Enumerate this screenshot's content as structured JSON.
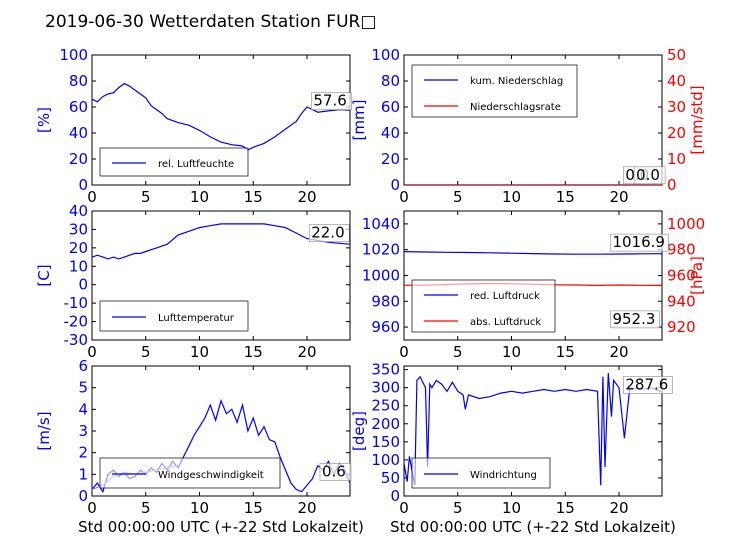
{
  "title": "2019-06-30 Wetterdaten Station FUR□",
  "xlabel": "Std 00:00:00 UTC (+-22 Std Lokalzeit)",
  "colors": {
    "left": "#0000ff",
    "right": "#ff0000",
    "light": "#8080ff"
  },
  "chart_data": [
    {
      "id": "humidity",
      "type": "line",
      "ylabel": "[%]",
      "xlim": [
        0,
        24
      ],
      "xticks": [
        0,
        5,
        10,
        15,
        20
      ],
      "ylim": [
        0,
        100
      ],
      "yticks": [
        0,
        20,
        40,
        60,
        80,
        100
      ],
      "legend": {
        "position": "lower-left",
        "entries": [
          "rel. Luftfeuchte"
        ]
      },
      "series": [
        {
          "name": "rel. Luftfeuchte",
          "color": "#0000ff",
          "x": [
            0,
            0.5,
            1,
            1.5,
            2,
            2.5,
            3,
            3.5,
            4,
            4.5,
            5,
            5.5,
            6,
            6.5,
            7,
            8,
            9,
            10,
            11,
            12,
            13,
            14,
            14.5,
            15,
            16,
            17,
            18,
            19,
            19.5,
            20,
            21,
            22,
            23,
            24
          ],
          "y": [
            66,
            64,
            68,
            70,
            71,
            75,
            78,
            76,
            73,
            70,
            67,
            61,
            58,
            55,
            51,
            48,
            46,
            42,
            37,
            33,
            31,
            30,
            27,
            29,
            32,
            37,
            43,
            49,
            55,
            60,
            56,
            57,
            58,
            57.6
          ]
        }
      ],
      "value_labels": [
        "57.6"
      ]
    },
    {
      "id": "precip",
      "type": "line",
      "ylabel": "[mm]",
      "y2label": "[mm/std]",
      "xlim": [
        0,
        24
      ],
      "xticks": [
        0,
        5,
        10,
        15,
        20
      ],
      "ylim": [
        0,
        100
      ],
      "yticks": [
        0,
        20,
        40,
        60,
        80,
        100
      ],
      "y2lim": [
        0,
        50
      ],
      "y2ticks": [
        0,
        10,
        20,
        30,
        40,
        50
      ],
      "legend": {
        "position": "upper-left",
        "entries": [
          "kum. Niederschlag",
          "Niederschlagsrate"
        ]
      },
      "series": [
        {
          "name": "kum. Niederschlag",
          "color": "#0000ff",
          "axis": "left",
          "x": [
            0,
            24
          ],
          "y": [
            0,
            0
          ]
        },
        {
          "name": "Niederschlagsrate",
          "color": "#ff0000",
          "axis": "right",
          "x": [
            0,
            24
          ],
          "y": [
            0,
            0
          ]
        }
      ],
      "value_labels": [
        "0.0",
        "0.0"
      ]
    },
    {
      "id": "temperature",
      "type": "line",
      "ylabel": "[C]",
      "xlim": [
        0,
        24
      ],
      "xticks": [
        0,
        5,
        10,
        15,
        20
      ],
      "ylim": [
        -30,
        40
      ],
      "yticks": [
        -30,
        -20,
        -10,
        0,
        10,
        20,
        30,
        40
      ],
      "legend": {
        "position": "lower-left",
        "entries": [
          "Lufttemperatur"
        ]
      },
      "series": [
        {
          "name": "Lufttemperatur",
          "color": "#0000ff",
          "x": [
            0,
            0.5,
            1,
            1.5,
            2,
            2.5,
            3,
            3.5,
            4,
            4.5,
            5,
            5.5,
            6,
            7,
            8,
            9,
            10,
            11,
            12,
            13,
            14,
            15,
            16,
            17,
            18,
            19,
            20,
            21,
            22,
            23,
            24
          ],
          "y": [
            15,
            16,
            15,
            14,
            15,
            14,
            15,
            16,
            17,
            17,
            18,
            19,
            20,
            22,
            27,
            29,
            31,
            32,
            33,
            33,
            33,
            33,
            33,
            32,
            31,
            28,
            25,
            24,
            23,
            22.5,
            22
          ]
        }
      ],
      "value_labels": [
        "22.0"
      ]
    },
    {
      "id": "pressure",
      "type": "line",
      "ylabel": "",
      "y2label": "[hPa]",
      "xlim": [
        0,
        24
      ],
      "xticks": [
        0,
        5,
        10,
        15,
        20
      ],
      "ylim": [
        950,
        1050
      ],
      "yticks": [
        960,
        980,
        1000,
        1020,
        1040
      ],
      "y2lim": [
        910,
        1010
      ],
      "y2ticks": [
        920,
        940,
        960,
        980,
        1000
      ],
      "legend": {
        "position": "lower-left",
        "entries": [
          "red. Luftdruck",
          "abs. Luftdruck"
        ]
      },
      "series": [
        {
          "name": "red. Luftdruck",
          "color": "#0000ff",
          "axis": "left",
          "x": [
            0,
            2,
            4,
            6,
            8,
            10,
            12,
            14,
            16,
            18,
            20,
            22,
            24
          ],
          "y": [
            1018.5,
            1018.2,
            1018,
            1017.8,
            1017.6,
            1017.3,
            1017,
            1016.7,
            1016.5,
            1016.5,
            1016.7,
            1016.8,
            1016.9
          ]
        },
        {
          "name": "abs. Luftdruck",
          "color": "#ff0000",
          "axis": "right",
          "x": [
            0,
            2,
            4,
            6,
            8,
            10,
            12,
            14,
            16,
            18,
            20,
            22,
            24
          ],
          "y": [
            952.5,
            952.5,
            953,
            953.5,
            953.8,
            953.6,
            953.2,
            952.8,
            952.6,
            952.3,
            952.6,
            952.4,
            952.3
          ]
        }
      ],
      "value_labels": [
        "1016.9",
        "952.3"
      ]
    },
    {
      "id": "wind_speed",
      "type": "line",
      "ylabel": "[m/s]",
      "xlim": [
        0,
        24
      ],
      "xticks": [
        0,
        5,
        10,
        15,
        20
      ],
      "ylim": [
        0,
        6
      ],
      "yticks": [
        0,
        1,
        2,
        3,
        4,
        5,
        6
      ],
      "legend": {
        "position": "lower-left",
        "entries": [
          "Windgeschwindigkeit"
        ]
      },
      "series": [
        {
          "name": "Windgeschwindigkeit",
          "color": "#0000ff",
          "x": [
            0,
            0.5,
            1,
            1.5,
            2,
            2.5,
            3,
            3.5,
            4,
            4.5,
            5,
            5.5,
            6,
            6.5,
            7,
            7.5,
            8,
            8.5,
            9,
            9.5,
            10,
            10.5,
            11,
            11.5,
            12,
            12.5,
            13,
            13.5,
            14,
            14.5,
            15,
            15.5,
            16,
            16.5,
            17,
            17.5,
            18,
            18.5,
            19,
            19.5,
            20,
            20.5,
            21,
            21.5,
            22,
            22.5,
            23,
            23.5,
            24
          ],
          "y": [
            0.3,
            0.6,
            0.2,
            1.0,
            1.2,
            0.9,
            1.1,
            0.8,
            0.9,
            1.2,
            1.0,
            1.3,
            1.1,
            1.5,
            1.2,
            1.6,
            1.3,
            1.8,
            2.3,
            2.8,
            3.2,
            3.6,
            4.2,
            3.5,
            4.4,
            3.8,
            4.0,
            3.4,
            4.2,
            3.0,
            3.6,
            2.8,
            3.2,
            2.6,
            2.5,
            1.8,
            1.2,
            0.6,
            0.3,
            0.2,
            0.5,
            0.8,
            1.4,
            1.2,
            1.6,
            1.0,
            1.5,
            1.2,
            0.6
          ]
        },
        {
          "name": "Windgeschwindigkeit (avg)",
          "color": "#8080ff",
          "x": [
            0,
            1,
            2,
            3,
            4,
            5,
            6,
            7,
            8
          ],
          "y": [
            0.3,
            0.5,
            0.9,
            1.1,
            1.0,
            1.1,
            1.2,
            1.3,
            1.4
          ]
        }
      ],
      "value_labels": [
        "0.6"
      ]
    },
    {
      "id": "wind_dir",
      "type": "line",
      "ylabel": "[deg]",
      "xlim": [
        0,
        24
      ],
      "xticks": [
        0,
        5,
        10,
        15,
        20
      ],
      "ylim": [
        0,
        360
      ],
      "yticks": [
        0,
        50,
        100,
        150,
        200,
        250,
        300,
        350
      ],
      "legend": {
        "position": "lower-left",
        "entries": [
          "Windrichtung"
        ]
      },
      "series": [
        {
          "name": "Windrichtung",
          "color": "#0000ff",
          "x": [
            0,
            0.3,
            0.5,
            0.8,
            1,
            1.2,
            1.5,
            2,
            2.2,
            2.4,
            2.6,
            3,
            3.5,
            4,
            4.5,
            5,
            5.5,
            5.7,
            6,
            7,
            8,
            9,
            10,
            11,
            12,
            13,
            14,
            15,
            16,
            17,
            18,
            18.3,
            18.5,
            18.7,
            19,
            19.3,
            19.5,
            20,
            20.5,
            21,
            22,
            23,
            24
          ],
          "y": [
            90,
            40,
            110,
            60,
            30,
            320,
            330,
            300,
            80,
            310,
            300,
            320,
            310,
            290,
            315,
            290,
            280,
            240,
            280,
            270,
            275,
            285,
            290,
            285,
            290,
            295,
            290,
            295,
            290,
            295,
            290,
            30,
            330,
            80,
            340,
            220,
            320,
            300,
            160,
            300,
            295,
            300,
            287.6
          ]
        }
      ],
      "value_labels": [
        "287.6"
      ]
    }
  ]
}
